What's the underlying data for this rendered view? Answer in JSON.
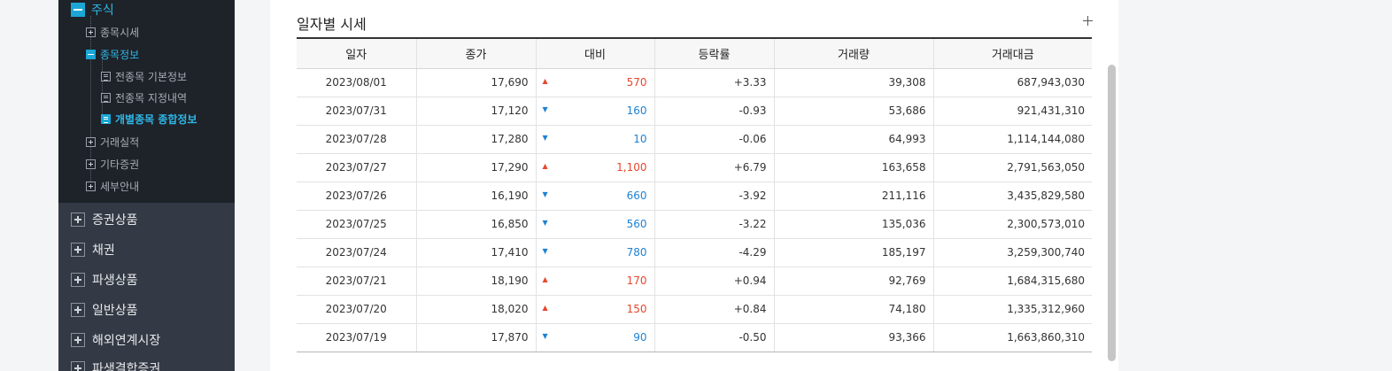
{
  "sidebar": {
    "tree": {
      "root_label": "주식",
      "children": [
        {
          "label": "종목시세"
        },
        {
          "label": "종목정보"
        },
        {
          "label": "전종목 기본정보"
        },
        {
          "label": "전종목 지정내역"
        },
        {
          "label": "개별종목 종합정보"
        },
        {
          "label": "거래실적"
        },
        {
          "label": "기타증권"
        },
        {
          "label": "세부안내"
        }
      ]
    },
    "menu": [
      {
        "label": "증권상품"
      },
      {
        "label": "채권"
      },
      {
        "label": "파생상품"
      },
      {
        "label": "일반상품"
      },
      {
        "label": "해외연계시장"
      },
      {
        "label": "파생결합증권"
      }
    ]
  },
  "section": {
    "title": "일자별 시세"
  },
  "table": {
    "headers": [
      "일자",
      "종가",
      "대비",
      "등락률",
      "거래량",
      "거래대금"
    ],
    "rows": [
      {
        "date": "2023/08/01",
        "close": "17,690",
        "dir": "up",
        "diff": "570",
        "rate": "+3.33",
        "volume": "39,308",
        "amount": "687,943,030"
      },
      {
        "date": "2023/07/31",
        "close": "17,120",
        "dir": "down",
        "diff": "160",
        "rate": "-0.93",
        "volume": "53,686",
        "amount": "921,431,310"
      },
      {
        "date": "2023/07/28",
        "close": "17,280",
        "dir": "down",
        "diff": "10",
        "rate": "-0.06",
        "volume": "64,993",
        "amount": "1,114,144,080"
      },
      {
        "date": "2023/07/27",
        "close": "17,290",
        "dir": "up",
        "diff": "1,100",
        "rate": "+6.79",
        "volume": "163,658",
        "amount": "2,791,563,050"
      },
      {
        "date": "2023/07/26",
        "close": "16,190",
        "dir": "down",
        "diff": "660",
        "rate": "-3.92",
        "volume": "211,116",
        "amount": "3,435,829,580"
      },
      {
        "date": "2023/07/25",
        "close": "16,850",
        "dir": "down",
        "diff": "560",
        "rate": "-3.22",
        "volume": "135,036",
        "amount": "2,300,573,010"
      },
      {
        "date": "2023/07/24",
        "close": "17,410",
        "dir": "down",
        "diff": "780",
        "rate": "-4.29",
        "volume": "185,197",
        "amount": "3,259,300,740"
      },
      {
        "date": "2023/07/21",
        "close": "18,190",
        "dir": "up",
        "diff": "170",
        "rate": "+0.94",
        "volume": "92,769",
        "amount": "1,684,315,680"
      },
      {
        "date": "2023/07/20",
        "close": "18,020",
        "dir": "up",
        "diff": "150",
        "rate": "+0.84",
        "volume": "74,180",
        "amount": "1,335,312,960"
      },
      {
        "date": "2023/07/19",
        "close": "17,870",
        "dir": "down",
        "diff": "90",
        "rate": "-0.50",
        "volume": "93,366",
        "amount": "1,663,860,310"
      }
    ],
    "arrows": {
      "up": "▲",
      "down": "▼"
    }
  },
  "colors": {
    "up": "#e8462c",
    "down": "#1e82d2",
    "accent": "#1aa7d6",
    "sidebar_bg": "#343a45",
    "tree_bg": "#1e2229"
  }
}
